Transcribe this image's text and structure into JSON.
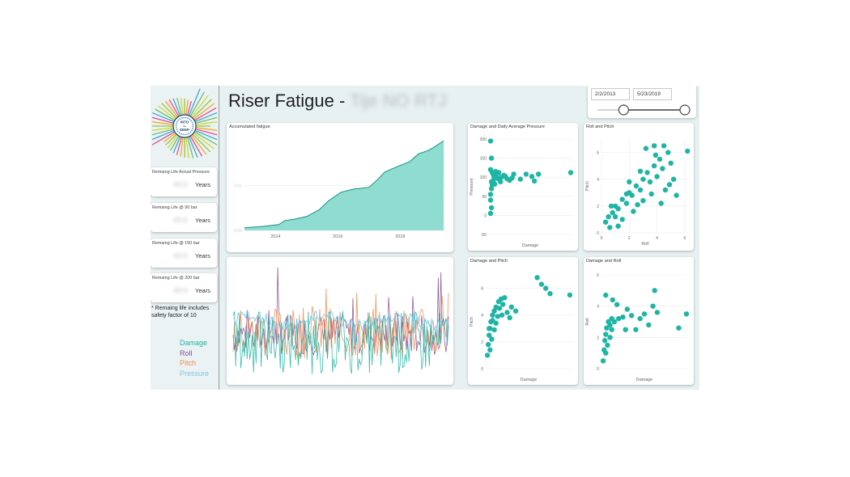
{
  "header": {
    "title": "Riser Fatigue -",
    "title_redacted": "Tije NO RTJ"
  },
  "logo": {
    "line1": "INTO",
    "line2": "the",
    "line3": "DEEP"
  },
  "date_range": {
    "start": "2/2/2013",
    "end": "5/23/2019",
    "start_fraction": 0.3,
    "end_fraction": 1.0
  },
  "remaining_life": [
    {
      "label": "Remaing Life Actual Pressure",
      "value": "44.6",
      "unit": "Years"
    },
    {
      "label": "Remaing Life  @ 90 bar",
      "value": "44.6",
      "unit": "Years"
    },
    {
      "label": "Remaing Life  @ 150 bar",
      "value": "44.6",
      "unit": "Years"
    },
    {
      "label": "Remaing Life @ 200 bar",
      "value": "44.6",
      "unit": "Years"
    }
  ],
  "note": "* Remaing life includes safety factor of 10",
  "legend": [
    {
      "label": "Damage",
      "color": "#1fb5a5"
    },
    {
      "label": "Roll",
      "color": "#8b4f8f"
    },
    {
      "label": "Pitch",
      "color": "#f08a4b"
    },
    {
      "label": "Pressure",
      "color": "#7fc9e6"
    }
  ],
  "chart_data": [
    {
      "type": "area",
      "title": "Accumulated fatigue",
      "color": "#1fb5a5",
      "xlim": [
        2013.0,
        2019.5
      ],
      "xticks": [
        "2014",
        "2016",
        "2018"
      ],
      "xtick_values": [
        2014,
        2016,
        2018
      ],
      "yticks": [
        "0.00",
        "0.01"
      ],
      "ylim": [
        0,
        0.02
      ],
      "points": [
        [
          2013.0,
          0.0006
        ],
        [
          2013.6,
          0.0009
        ],
        [
          2014.1,
          0.0013
        ],
        [
          2014.3,
          0.0022
        ],
        [
          2014.6,
          0.0025
        ],
        [
          2015.0,
          0.0031
        ],
        [
          2015.4,
          0.0046
        ],
        [
          2015.7,
          0.0066
        ],
        [
          2016.1,
          0.0085
        ],
        [
          2016.5,
          0.0092
        ],
        [
          2017.0,
          0.0096
        ],
        [
          2017.3,
          0.0115
        ],
        [
          2017.5,
          0.013
        ],
        [
          2017.9,
          0.0142
        ],
        [
          2018.3,
          0.0153
        ],
        [
          2018.6,
          0.0171
        ],
        [
          2018.9,
          0.0178
        ],
        [
          2019.1,
          0.0186
        ],
        [
          2019.4,
          0.02
        ]
      ]
    },
    {
      "type": "line",
      "title": "",
      "series": [
        {
          "name": "Damage",
          "color": "#1fb5a5"
        },
        {
          "name": "Roll",
          "color": "#8b4f8f"
        },
        {
          "name": "Pitch",
          "color": "#f08a4b"
        },
        {
          "name": "Pressure",
          "color": "#7fc9e6"
        }
      ]
    },
    {
      "type": "scatter",
      "title": "Damage and Daily Average Pressure",
      "xlabel": "Damage",
      "ylabel": "Pressure",
      "ylim": [
        -50,
        200
      ],
      "yticks": [
        -50,
        0,
        50,
        100,
        150,
        200
      ],
      "xlim": [
        0,
        1
      ],
      "color": "#1fb5a5",
      "points": [
        [
          0.02,
          195
        ],
        [
          0.03,
          150
        ],
        [
          0.02,
          120
        ],
        [
          0.04,
          112
        ],
        [
          0.05,
          108
        ],
        [
          0.06,
          103
        ],
        [
          0.08,
          100
        ],
        [
          0.1,
          98
        ],
        [
          0.12,
          95
        ],
        [
          0.15,
          100
        ],
        [
          0.18,
          105
        ],
        [
          0.2,
          102
        ],
        [
          0.22,
          96
        ],
        [
          0.25,
          92
        ],
        [
          0.28,
          98
        ],
        [
          0.3,
          108
        ],
        [
          0.05,
          90
        ],
        [
          0.04,
          80
        ],
        [
          0.03,
          70
        ],
        [
          0.02,
          55
        ],
        [
          0.02,
          40
        ],
        [
          0.03,
          20
        ],
        [
          0.02,
          5
        ],
        [
          0.03,
          88
        ],
        [
          0.45,
          108
        ],
        [
          0.52,
          102
        ],
        [
          0.6,
          108
        ],
        [
          0.55,
          90
        ],
        [
          0.38,
          95
        ],
        [
          0.99,
          112
        ],
        [
          0.08,
          115
        ],
        [
          0.1,
          110
        ],
        [
          0.14,
          88
        ],
        [
          0.12,
          112
        ],
        [
          0.07,
          82
        ],
        [
          0.06,
          95
        ]
      ]
    },
    {
      "type": "scatter",
      "title": "Roll and Pitch",
      "xlabel": "Roll",
      "ylabel": "Pitch",
      "xlim": [
        0,
        6.3
      ],
      "ylim": [
        0,
        7
      ],
      "xticks": [
        0,
        2,
        4,
        6
      ],
      "yticks": [
        0,
        2,
        4,
        6
      ],
      "color": "#1fb5a5",
      "points": [
        [
          0.3,
          0.8
        ],
        [
          0.5,
          1.2
        ],
        [
          0.8,
          1.5
        ],
        [
          1.0,
          2.0
        ],
        [
          1.2,
          1.8
        ],
        [
          1.5,
          2.5
        ],
        [
          1.8,
          2.2
        ],
        [
          2.0,
          3.0
        ],
        [
          2.2,
          2.8
        ],
        [
          2.5,
          3.5
        ],
        [
          2.8,
          3.2
        ],
        [
          3.0,
          4.0
        ],
        [
          3.3,
          4.5
        ],
        [
          3.5,
          3.8
        ],
        [
          3.8,
          5.0
        ],
        [
          4.0,
          4.2
        ],
        [
          4.2,
          5.5
        ],
        [
          4.5,
          6.5
        ],
        [
          4.8,
          6.0
        ],
        [
          5.0,
          5.2
        ],
        [
          3.2,
          6.3
        ],
        [
          3.8,
          6.5
        ],
        [
          6.2,
          6.1
        ],
        [
          4.4,
          4.8
        ],
        [
          2.8,
          4.6
        ],
        [
          5.2,
          4.0
        ],
        [
          4.6,
          3.2
        ],
        [
          5.4,
          2.8
        ],
        [
          4.9,
          3.6
        ],
        [
          1.2,
          0.5
        ],
        [
          0.6,
          0.4
        ],
        [
          1.5,
          1.0
        ],
        [
          2.3,
          1.6
        ],
        [
          3.0,
          2.4
        ],
        [
          3.6,
          2.9
        ],
        [
          4.3,
          2.2
        ],
        [
          2.0,
          3.8
        ],
        [
          1.8,
          2.9
        ],
        [
          2.6,
          2.1
        ],
        [
          1.0,
          1.2
        ],
        [
          0.7,
          2.0
        ],
        [
          3.9,
          5.8
        ]
      ]
    },
    {
      "type": "scatter",
      "title": "Damage and Pitch",
      "xlabel": "Damage",
      "ylabel": "Pitch",
      "xlim": [
        0,
        1
      ],
      "ylim": [
        0,
        7
      ],
      "yticks": [
        0,
        2,
        4,
        6
      ],
      "color": "#1fb5a5",
      "points": [
        [
          0.02,
          1.0
        ],
        [
          0.03,
          1.8
        ],
        [
          0.04,
          2.5
        ],
        [
          0.05,
          3.0
        ],
        [
          0.06,
          3.5
        ],
        [
          0.08,
          4.0
        ],
        [
          0.1,
          4.3
        ],
        [
          0.12,
          4.6
        ],
        [
          0.15,
          5.0
        ],
        [
          0.18,
          5.2
        ],
        [
          0.2,
          4.8
        ],
        [
          0.22,
          5.3
        ],
        [
          0.25,
          4.2
        ],
        [
          0.28,
          3.8
        ],
        [
          0.3,
          4.6
        ],
        [
          0.35,
          4.3
        ],
        [
          0.05,
          1.4
        ],
        [
          0.07,
          2.2
        ],
        [
          0.12,
          3.4
        ],
        [
          0.16,
          4.5
        ],
        [
          0.6,
          6.8
        ],
        [
          0.65,
          6.3
        ],
        [
          0.7,
          6.0
        ],
        [
          0.75,
          5.6
        ],
        [
          0.98,
          5.5
        ],
        [
          0.1,
          2.9
        ],
        [
          0.08,
          3.6
        ],
        [
          0.14,
          3.9
        ],
        [
          0.19,
          4.0
        ],
        [
          0.04,
          3.0
        ]
      ]
    },
    {
      "type": "scatter",
      "title": "Damage and Roll",
      "xlabel": "Damage",
      "ylabel": "Roll",
      "xlim": [
        0,
        1
      ],
      "ylim": [
        0,
        6
      ],
      "yticks": [
        0,
        2,
        4,
        6
      ],
      "color": "#1fb5a5",
      "points": [
        [
          0.02,
          0.5
        ],
        [
          0.03,
          1.2
        ],
        [
          0.04,
          1.8
        ],
        [
          0.05,
          2.2
        ],
        [
          0.06,
          2.6
        ],
        [
          0.08,
          3.0
        ],
        [
          0.1,
          2.8
        ],
        [
          0.12,
          3.2
        ],
        [
          0.15,
          3.0
        ],
        [
          0.05,
          1.0
        ],
        [
          0.07,
          1.5
        ],
        [
          0.1,
          2.0
        ],
        [
          0.12,
          2.5
        ],
        [
          0.2,
          3.2
        ],
        [
          0.25,
          3.3
        ],
        [
          0.28,
          2.5
        ],
        [
          0.3,
          3.8
        ],
        [
          0.35,
          3.4
        ],
        [
          0.45,
          3.2
        ],
        [
          0.55,
          2.8
        ],
        [
          0.6,
          4.0
        ],
        [
          0.62,
          5.0
        ],
        [
          0.5,
          3.5
        ],
        [
          0.05,
          4.7
        ],
        [
          0.13,
          4.4
        ],
        [
          0.65,
          3.6
        ],
        [
          0.9,
          2.6
        ],
        [
          0.99,
          3.5
        ],
        [
          0.4,
          2.5
        ],
        [
          0.18,
          4.1
        ]
      ]
    }
  ]
}
